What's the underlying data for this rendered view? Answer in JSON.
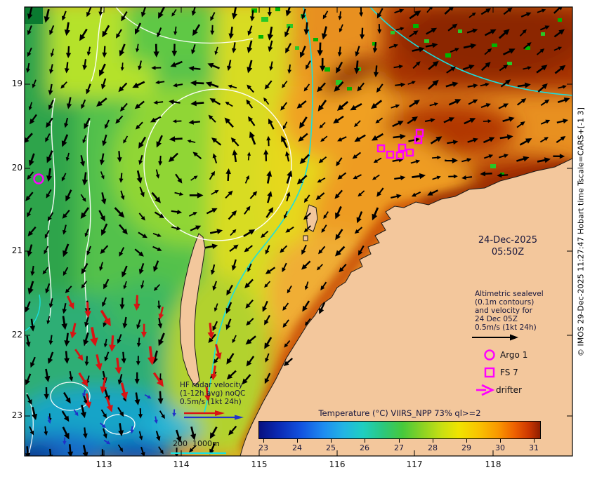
{
  "axes": {
    "x_ticks": [
      "113",
      "114",
      "115",
      "116",
      "117",
      "118"
    ],
    "y_ticks": [
      "19",
      "20",
      "21",
      "22",
      "23"
    ]
  },
  "timestamp": {
    "date": "24-Dec-2025",
    "time": "05:50Z"
  },
  "altimetric_note": {
    "line1": "Altimetric sealevel",
    "line2": "(0.1m contours)",
    "line3": "and velocity for",
    "line4": "24 Dec 05Z",
    "line5": "0.5m/s (1kt 24h)"
  },
  "legend": {
    "argo": "Argo 1",
    "fs": "FS 7",
    "drifter": "drifter"
  },
  "hf_note": {
    "line1": "HF radar velocity",
    "line2": "(1-12h avg) noQC",
    "line3": "0.5m/s (1kt 24h)"
  },
  "scale_bar": "200  1000m",
  "colorbar": {
    "title": "Temperature (°C) VIIRS_NPP 73% ql>=2",
    "ticks": [
      "23",
      "24",
      "25",
      "26",
      "27",
      "28",
      "29",
      "30",
      "31"
    ]
  },
  "credit": "© IMOS 29-Dec-2025 11:27:47 Hobart time Tscale=CARS+[-1 3]",
  "colors": {
    "magenta": "#ff00ff",
    "cyan_contour": "#19e0e0",
    "annotation": "#14143c"
  }
}
